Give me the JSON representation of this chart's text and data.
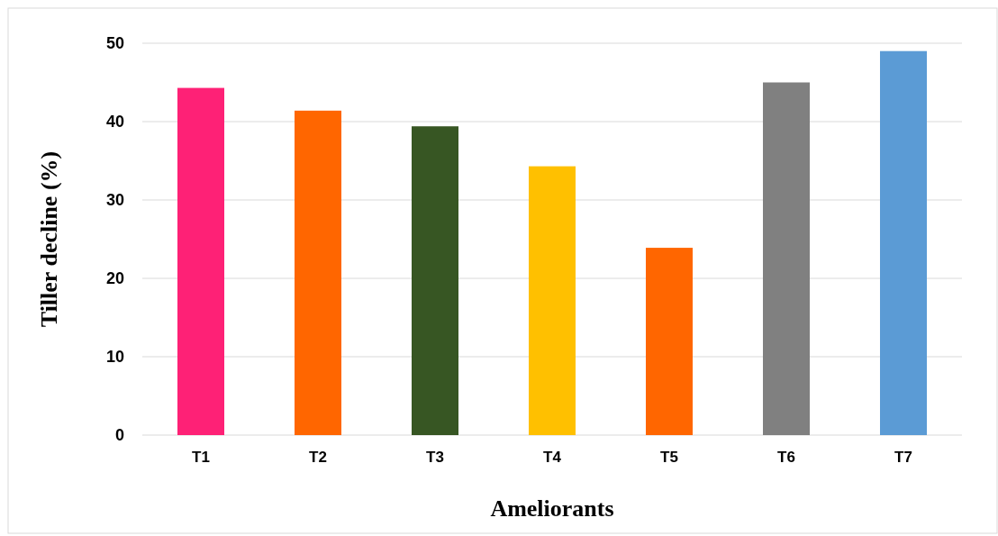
{
  "chart_data": {
    "type": "bar",
    "xlabel": "Ameliorants",
    "ylabel": "Tiller decline (%)",
    "categories": [
      "T1",
      "T2",
      "T3",
      "T4",
      "T5",
      "T6",
      "T7"
    ],
    "values": [
      44.3,
      41.4,
      39.4,
      34.3,
      23.9,
      45.0,
      49.0
    ],
    "colors": [
      "#fe2176",
      "#ff6600",
      "#375623",
      "#ffc000",
      "#ff6600",
      "#808080",
      "#5b9bd5"
    ],
    "ylim": [
      0,
      50
    ],
    "yticks": [
      0,
      10,
      20,
      30,
      40,
      50
    ],
    "grid": "y"
  }
}
